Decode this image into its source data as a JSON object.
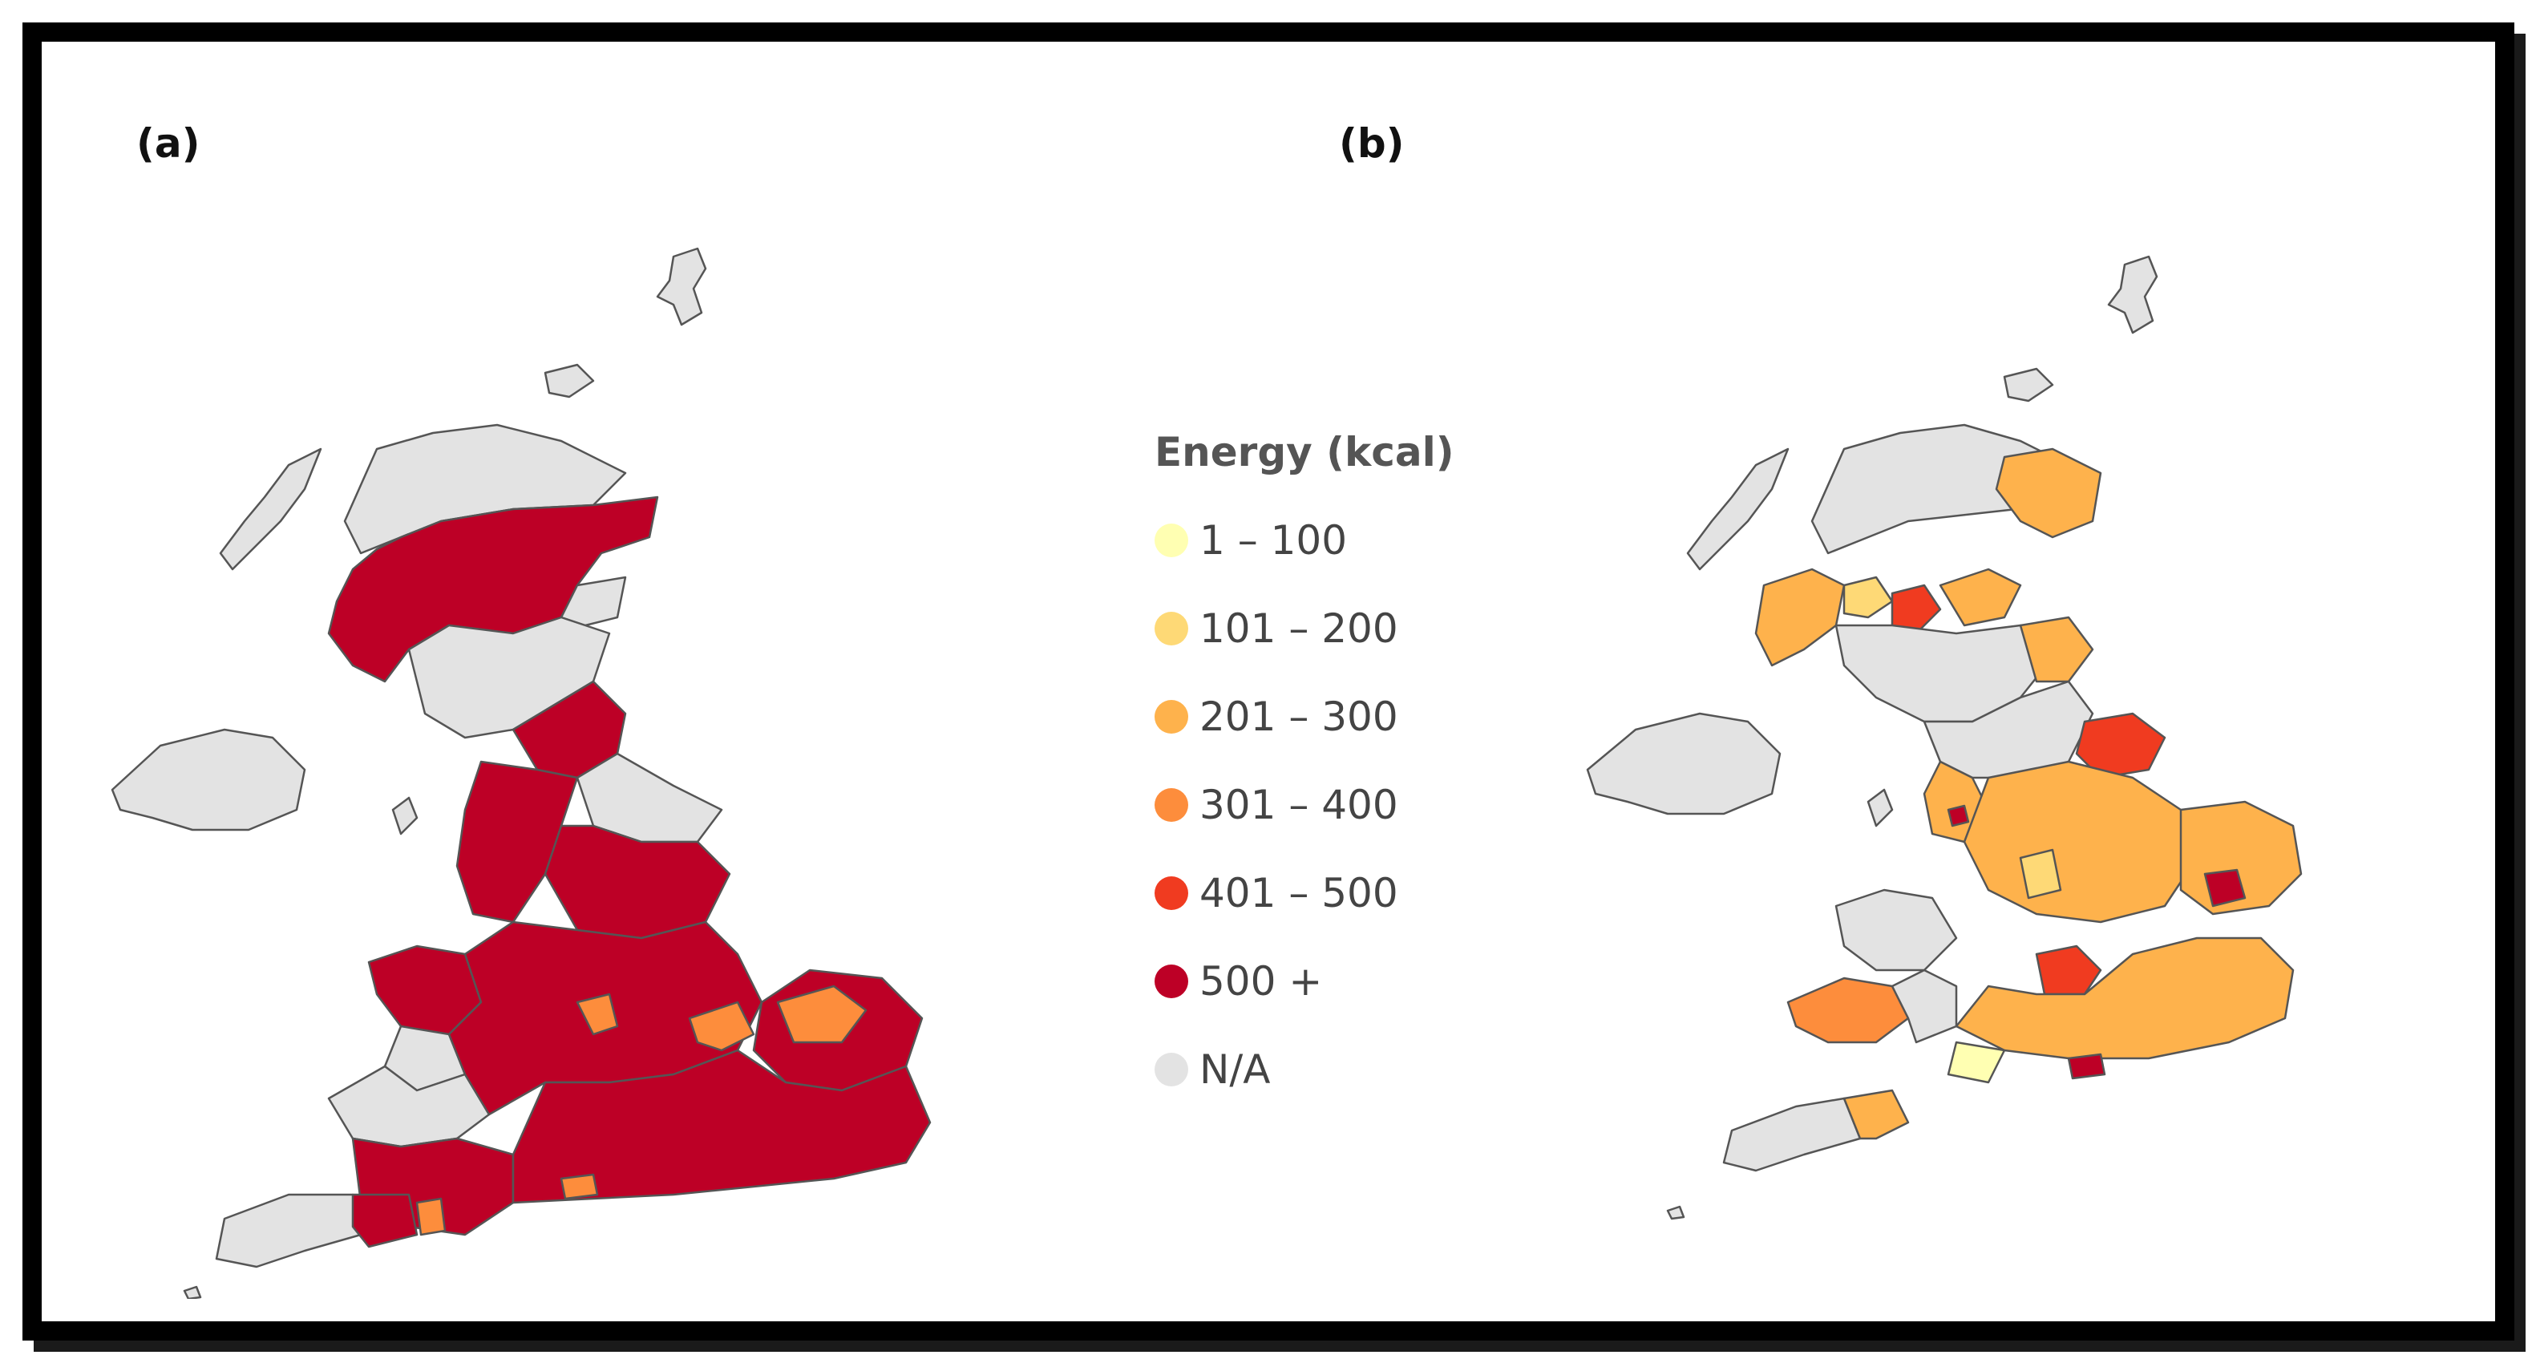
{
  "panels": [
    {
      "label": "(a)"
    },
    {
      "label": "(b)"
    }
  ],
  "legend": {
    "title": "Energy (kcal)",
    "items": [
      {
        "label": "1 – 100",
        "color": "#ffffb2"
      },
      {
        "label": "101 – 200",
        "color": "#fed976"
      },
      {
        "label": "201 – 300",
        "color": "#feb24c"
      },
      {
        "label": "301 – 400",
        "color": "#fd8d3c"
      },
      {
        "label": "401 – 500",
        "color": "#f03b20"
      },
      {
        "label": "500 +",
        "color": "#bd0026"
      },
      {
        "label": "N/A",
        "color": "#e3e3e3"
      }
    ]
  },
  "colors": {
    "na": "#e3e3e3",
    "border": "#555555"
  }
}
